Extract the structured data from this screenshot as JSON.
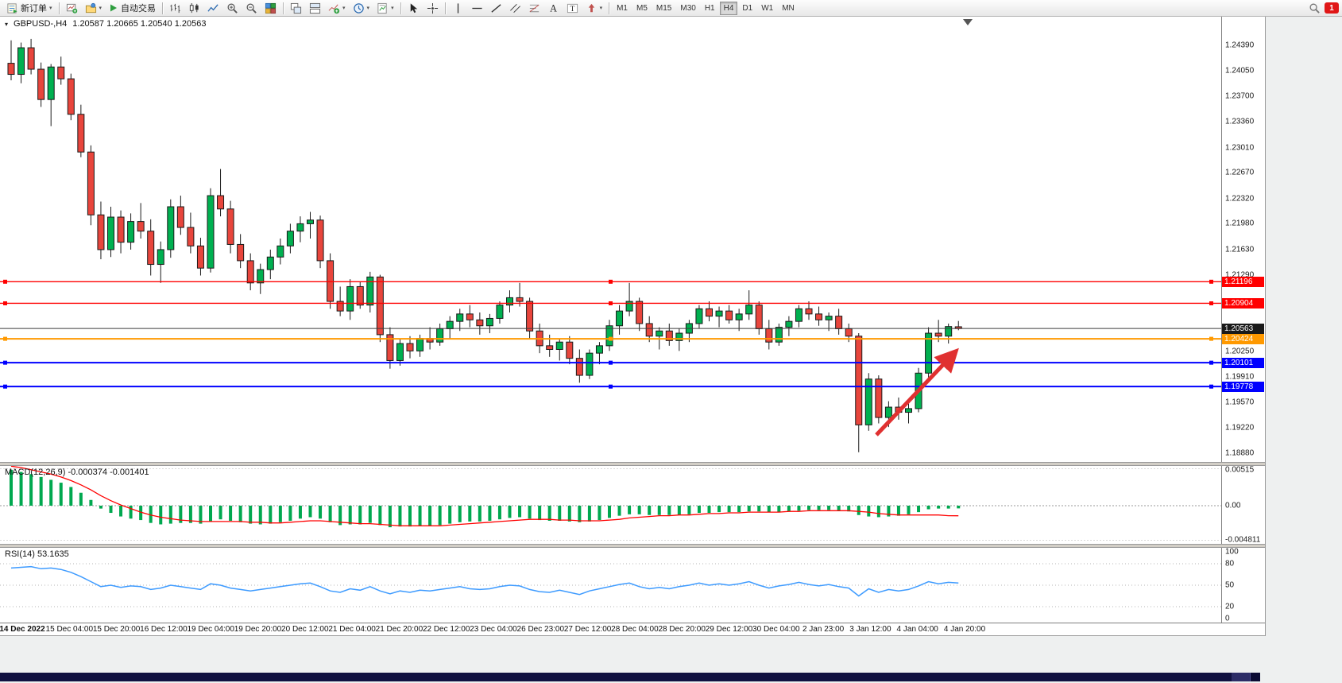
{
  "toolbar": {
    "new_order_label": "新订单",
    "auto_trading_label": "自动交易",
    "timeframes": [
      "M1",
      "M5",
      "M15",
      "M30",
      "H1",
      "H4",
      "D1",
      "W1",
      "MN"
    ],
    "active_timeframe": "H4",
    "notification_count": "1",
    "icon_names": [
      "new-order-icon",
      "new-chart-icon",
      "profiles-icon",
      "auto-trading-play-icon",
      "bar-chart-icon",
      "candlestick-chart-icon",
      "line-chart-icon",
      "zoom-in-icon",
      "zoom-out-icon",
      "tile-windows-icon",
      "cascade-windows-icon",
      "arrange-windows-icon",
      "indicators-icon",
      "periods-icon",
      "templates-icon",
      "cursor-icon",
      "crosshair-icon",
      "vertical-line-icon",
      "horizontal-line-icon",
      "trendline-icon",
      "channel-icon",
      "fibonacci-icon",
      "text-icon",
      "text-label-icon",
      "arrows-icon",
      "search-icon"
    ]
  },
  "chart": {
    "title": "GBPUSD-,H4",
    "ohlc": "1.20587 1.20665 1.20540 1.20563"
  },
  "chart_data": {
    "type": "candlestick",
    "symbol": "GBPUSD-",
    "timeframe": "H4",
    "price_range": {
      "top": 1.2478,
      "bottom": 1.1878
    },
    "colors": {
      "bull": "#00B050",
      "bear": "#E8453C",
      "wick": "#1a1a1a",
      "macd_hist": "#00A84F",
      "macd_signal": "#FF0000",
      "rsi_line": "#3E9BFF"
    },
    "candles": [
      [
        1.2415,
        1.2446,
        1.2392,
        1.24
      ],
      [
        1.24,
        1.2443,
        1.2388,
        1.2436
      ],
      [
        1.2436,
        1.2448,
        1.24,
        1.2407
      ],
      [
        1.2407,
        1.2416,
        1.2356,
        1.2366
      ],
      [
        1.2366,
        1.2414,
        1.233,
        1.241
      ],
      [
        1.241,
        1.2424,
        1.2386,
        1.2394
      ],
      [
        1.2394,
        1.2401,
        1.2338,
        1.2346
      ],
      [
        1.2346,
        1.2359,
        1.2288,
        1.2295
      ],
      [
        1.2295,
        1.2304,
        1.2196,
        1.221
      ],
      [
        1.221,
        1.2228,
        1.215,
        1.2163
      ],
      [
        1.2163,
        1.2221,
        1.2153,
        1.2207
      ],
      [
        1.2207,
        1.2216,
        1.2158,
        1.2173
      ],
      [
        1.2173,
        1.2212,
        1.2163,
        1.2201
      ],
      [
        1.2201,
        1.2226,
        1.2178,
        1.2188
      ],
      [
        1.2188,
        1.2204,
        1.2128,
        1.2143
      ],
      [
        1.2143,
        1.2174,
        1.2118,
        1.2163
      ],
      [
        1.2163,
        1.2231,
        1.2152,
        1.2221
      ],
      [
        1.2221,
        1.2236,
        1.2183,
        1.2193
      ],
      [
        1.2193,
        1.2213,
        1.2158,
        1.2168
      ],
      [
        1.2168,
        1.2179,
        1.2128,
        1.2138
      ],
      [
        1.2138,
        1.2246,
        1.2132,
        1.2236
      ],
      [
        1.2236,
        1.2272,
        1.2208,
        1.2218
      ],
      [
        1.2218,
        1.2229,
        1.2158,
        1.217
      ],
      [
        1.217,
        1.2184,
        1.2138,
        1.2148
      ],
      [
        1.2148,
        1.2158,
        1.2108,
        1.2118
      ],
      [
        1.2118,
        1.2144,
        1.2103,
        1.2136
      ],
      [
        1.2136,
        1.2163,
        1.2123,
        1.2153
      ],
      [
        1.2153,
        1.2178,
        1.2143,
        1.2168
      ],
      [
        1.2168,
        1.2198,
        1.2158,
        1.2188
      ],
      [
        1.2188,
        1.2208,
        1.2173,
        1.2198
      ],
      [
        1.2198,
        1.2214,
        1.2178,
        1.2203
      ],
      [
        1.2203,
        1.2209,
        1.2138,
        1.2148
      ],
      [
        1.2148,
        1.2158,
        1.2083,
        1.2093
      ],
      [
        1.2093,
        1.2113,
        1.2073,
        1.208
      ],
      [
        1.208,
        1.2123,
        1.2068,
        1.2113
      ],
      [
        1.2113,
        1.2119,
        1.2083,
        1.2088
      ],
      [
        1.2088,
        1.2133,
        1.2078,
        1.2126
      ],
      [
        1.2126,
        1.2129,
        1.2038,
        1.2048
      ],
      [
        1.2048,
        1.2058,
        1.2002,
        1.2013
      ],
      [
        1.2013,
        1.2043,
        1.2006,
        1.2036
      ],
      [
        1.2036,
        1.2046,
        1.2016,
        1.2026
      ],
      [
        1.2026,
        1.2048,
        1.2018,
        1.2043
      ],
      [
        1.2043,
        1.2058,
        1.2028,
        1.2038
      ],
      [
        1.2038,
        1.2063,
        1.2033,
        1.2056
      ],
      [
        1.2056,
        1.2073,
        1.2043,
        1.2066
      ],
      [
        1.2066,
        1.2083,
        1.2053,
        1.2076
      ],
      [
        1.2076,
        1.2088,
        1.2058,
        1.2068
      ],
      [
        1.2068,
        1.2078,
        1.2048,
        1.206
      ],
      [
        1.206,
        1.2076,
        1.205,
        1.207
      ],
      [
        1.207,
        1.2093,
        1.2063,
        1.2088
      ],
      [
        1.2088,
        1.2108,
        1.2078,
        1.2098
      ],
      [
        1.2098,
        1.2118,
        1.2086,
        1.2093
      ],
      [
        1.2093,
        1.2098,
        1.2043,
        1.2053
      ],
      [
        1.2053,
        1.2063,
        1.2023,
        1.2033
      ],
      [
        1.2033,
        1.2048,
        1.2018,
        1.2028
      ],
      [
        1.2028,
        1.2043,
        1.2013,
        1.2038
      ],
      [
        1.2038,
        1.2046,
        1.2008,
        1.2016
      ],
      [
        1.2016,
        1.2028,
        1.1983,
        1.1993
      ],
      [
        1.1993,
        1.2028,
        1.1988,
        1.2023
      ],
      [
        1.2023,
        1.2038,
        1.2008,
        1.2033
      ],
      [
        1.2033,
        1.2068,
        1.2026,
        1.206
      ],
      [
        1.206,
        1.2088,
        1.2048,
        1.208
      ],
      [
        1.208,
        1.2118,
        1.2073,
        1.2093
      ],
      [
        1.2093,
        1.2098,
        1.2053,
        1.2063
      ],
      [
        1.2063,
        1.2073,
        1.2038,
        1.2046
      ],
      [
        1.2046,
        1.2058,
        1.2028,
        1.2053
      ],
      [
        1.2053,
        1.2063,
        1.2033,
        1.204
      ],
      [
        1.204,
        1.2056,
        1.2026,
        1.205
      ],
      [
        1.205,
        1.2068,
        1.2038,
        1.2063
      ],
      [
        1.2063,
        1.2088,
        1.2056,
        1.2083
      ],
      [
        1.2083,
        1.2093,
        1.2066,
        1.2073
      ],
      [
        1.2073,
        1.2086,
        1.2058,
        1.208
      ],
      [
        1.208,
        1.2088,
        1.2063,
        1.2068
      ],
      [
        1.2068,
        1.2083,
        1.2053,
        1.2076
      ],
      [
        1.2076,
        1.2108,
        1.2068,
        1.2088
      ],
      [
        1.2088,
        1.2093,
        1.2048,
        1.2056
      ],
      [
        1.2056,
        1.2068,
        1.2028,
        1.2038
      ],
      [
        1.2038,
        1.2063,
        1.2033,
        1.2058
      ],
      [
        1.2058,
        1.2073,
        1.2046,
        1.2066
      ],
      [
        1.2066,
        1.2088,
        1.2058,
        1.2083
      ],
      [
        1.2083,
        1.2093,
        1.2068,
        1.2076
      ],
      [
        1.2076,
        1.2086,
        1.206,
        1.2068
      ],
      [
        1.2068,
        1.2078,
        1.2053,
        1.2073
      ],
      [
        1.2073,
        1.2083,
        1.2048,
        1.2056
      ],
      [
        1.2056,
        1.2063,
        1.2038,
        1.2046
      ],
      [
        1.2046,
        1.205,
        1.1889,
        1.1926
      ],
      [
        1.1926,
        1.1996,
        1.1918,
        1.1988
      ],
      [
        1.1988,
        1.1993,
        1.1928,
        1.1936
      ],
      [
        1.1936,
        1.1958,
        1.1923,
        1.195
      ],
      [
        1.195,
        1.1963,
        1.1933,
        1.1943
      ],
      [
        1.1943,
        1.1956,
        1.1928,
        1.1948
      ],
      [
        1.1948,
        1.2003,
        1.1943,
        1.1996
      ],
      [
        1.1996,
        1.2058,
        1.199,
        1.205
      ],
      [
        1.205,
        1.2068,
        1.2038,
        1.2046
      ],
      [
        1.2046,
        1.2063,
        1.2036,
        1.2059
      ],
      [
        1.20587,
        1.20665,
        1.2054,
        1.20563
      ]
    ],
    "price_axis_labels": [
      "1.24390",
      "1.24050",
      "1.23700",
      "1.23360",
      "1.23010",
      "1.22670",
      "1.22320",
      "1.21980",
      "1.21630",
      "1.21290",
      "1.20250",
      "1.19910",
      "1.19570",
      "1.19220",
      "1.18880"
    ],
    "hlines": [
      {
        "price": 1.21196,
        "label": "1.21196",
        "color": "#FF0000",
        "width": 1.4
      },
      {
        "price": 1.20904,
        "label": "1.20904",
        "color": "#FF0000",
        "width": 1.4
      },
      {
        "price": 1.20424,
        "label": "1.20424",
        "color": "#FF9900",
        "width": 2
      },
      {
        "price": 1.20101,
        "label": "1.20101",
        "color": "#0000FF",
        "width": 2
      },
      {
        "price": 1.19778,
        "label": "1.19778",
        "color": "#0000FF",
        "width": 2
      }
    ],
    "current_price": {
      "price": 1.20563,
      "label": "1.20563",
      "color": "#3c3c3c",
      "tag_color": "#1a1a1a"
    },
    "time_labels": [
      "14 Dec 2022",
      "15 Dec 04:00",
      "15 Dec 20:00",
      "16 Dec 12:00",
      "19 Dec 04:00",
      "19 Dec 20:00",
      "20 Dec 12:00",
      "21 Dec 04:00",
      "21 Dec 20:00",
      "22 Dec 12:00",
      "23 Dec 04:00",
      "26 Dec 23:00",
      "27 Dec 12:00",
      "28 Dec 04:00",
      "28 Dec 20:00",
      "29 Dec 12:00",
      "30 Dec 04:00",
      "2 Jan 23:00",
      "3 Jan 12:00",
      "4 Jan 04:00",
      "4 Jan 20:00"
    ],
    "macd": {
      "label": "MACD(12,26,9) -0.000374 -0.001401",
      "axis_labels": [
        "0.00515",
        "0.00",
        "-0.004811"
      ],
      "histogram": [
        0.005,
        0.0047,
        0.0044,
        0.004,
        0.0036,
        0.0032,
        0.0026,
        0.0018,
        0.0008,
        -0.0004,
        -0.001,
        -0.0015,
        -0.0018,
        -0.002,
        -0.0024,
        -0.0026,
        -0.0025,
        -0.0024,
        -0.0024,
        -0.0025,
        -0.0022,
        -0.0019,
        -0.0021,
        -0.0023,
        -0.0025,
        -0.0026,
        -0.0025,
        -0.0023,
        -0.0021,
        -0.0018,
        -0.0016,
        -0.0018,
        -0.0023,
        -0.0027,
        -0.0026,
        -0.0026,
        -0.0024,
        -0.0027,
        -0.003,
        -0.0029,
        -0.0029,
        -0.0028,
        -0.0028,
        -0.0027,
        -0.0025,
        -0.0023,
        -0.0022,
        -0.0022,
        -0.0021,
        -0.0019,
        -0.0017,
        -0.0016,
        -0.0018,
        -0.002,
        -0.0021,
        -0.0021,
        -0.0022,
        -0.0023,
        -0.0022,
        -0.002,
        -0.0017,
        -0.0014,
        -0.0012,
        -0.0012,
        -0.0013,
        -0.0013,
        -0.0013,
        -0.0013,
        -0.0012,
        -0.001,
        -0.001,
        -0.0009,
        -0.0009,
        -0.0009,
        -0.0008,
        -0.0008,
        -0.0009,
        -0.0009,
        -0.0008,
        -0.0007,
        -0.0006,
        -0.0006,
        -0.0006,
        -0.0007,
        -0.0008,
        -0.0013,
        -0.0015,
        -0.0016,
        -0.0015,
        -0.0014,
        -0.0012,
        -0.0009,
        -0.0005,
        -0.0004,
        -0.0004,
        -0.000374
      ],
      "signal": [
        0.0055,
        0.0053,
        0.005,
        0.0047,
        0.0044,
        0.004,
        0.0035,
        0.0029,
        0.0022,
        0.0014,
        0.0007,
        0.0001,
        -0.0004,
        -0.0009,
        -0.0013,
        -0.0016,
        -0.0018,
        -0.002,
        -0.0021,
        -0.0022,
        -0.0022,
        -0.0022,
        -0.0022,
        -0.0022,
        -0.0023,
        -0.0023,
        -0.0024,
        -0.0024,
        -0.0023,
        -0.0022,
        -0.0021,
        -0.0021,
        -0.0022,
        -0.0023,
        -0.0024,
        -0.0025,
        -0.0025,
        -0.0026,
        -0.0027,
        -0.0028,
        -0.0028,
        -0.0028,
        -0.0028,
        -0.0028,
        -0.0027,
        -0.0026,
        -0.0025,
        -0.0024,
        -0.0023,
        -0.0022,
        -0.0021,
        -0.002,
        -0.0019,
        -0.0019,
        -0.0019,
        -0.002,
        -0.002,
        -0.0021,
        -0.0021,
        -0.0021,
        -0.002,
        -0.0019,
        -0.0017,
        -0.0016,
        -0.0015,
        -0.0014,
        -0.0014,
        -0.0013,
        -0.0013,
        -0.0012,
        -0.0011,
        -0.0011,
        -0.001,
        -0.001,
        -0.0009,
        -0.0009,
        -0.0009,
        -0.0009,
        -0.0008,
        -0.0008,
        -0.0007,
        -0.0007,
        -0.0007,
        -0.0007,
        -0.0007,
        -0.0008,
        -0.0009,
        -0.0011,
        -0.0012,
        -0.0013,
        -0.0013,
        -0.0013,
        -0.0013,
        -0.0013,
        -0.0014,
        -0.001401
      ]
    },
    "rsi": {
      "label": "RSI(14) 53.1635",
      "axis_labels": [
        "100",
        "80",
        "50",
        "20",
        "0"
      ],
      "levels": [
        80,
        50,
        20
      ],
      "values": [
        74,
        75,
        76,
        73,
        74,
        72,
        68,
        62,
        55,
        48,
        50,
        47,
        49,
        48,
        44,
        46,
        50,
        48,
        46,
        44,
        52,
        50,
        46,
        44,
        42,
        44,
        46,
        48,
        50,
        52,
        53,
        48,
        42,
        40,
        45,
        43,
        48,
        42,
        38,
        42,
        40,
        43,
        42,
        44,
        46,
        48,
        45,
        44,
        45,
        48,
        50,
        49,
        44,
        41,
        40,
        43,
        40,
        37,
        42,
        45,
        48,
        51,
        53,
        48,
        45,
        47,
        45,
        48,
        50,
        53,
        50,
        52,
        50,
        52,
        55,
        50,
        46,
        49,
        51,
        54,
        51,
        49,
        51,
        48,
        46,
        35,
        45,
        40,
        44,
        42,
        44,
        49,
        55,
        52,
        54,
        53.16
      ]
    },
    "annotation_arrow": {
      "from": [
        1103,
        526
      ],
      "to": [
        1200,
        424
      ],
      "color": "#E03131"
    }
  }
}
